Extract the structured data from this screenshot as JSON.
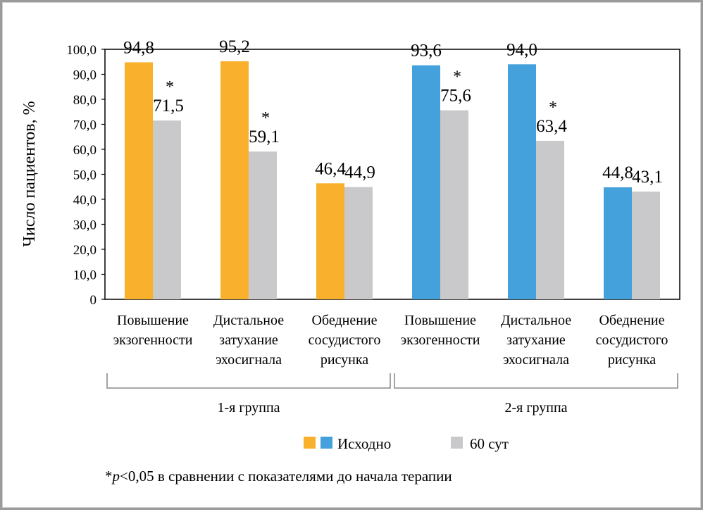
{
  "chart_data": {
    "type": "bar",
    "ylabel": "Число пациентов, %",
    "ylim": [
      0,
      100
    ],
    "yticks": [
      "0",
      "10,0",
      "20,0",
      "30,0",
      "40,0",
      "50,0",
      "60,0",
      "70,0",
      "80,0",
      "90,0",
      "100,0"
    ],
    "groups": [
      {
        "label": "1-я группа",
        "baseline_color": "#F9B02D",
        "categories": [
          {
            "label_lines": [
              "Повышение",
              "экзогенности"
            ],
            "baseline": 94.8,
            "day60": 71.5,
            "baseline_label": "94,8",
            "day60_label": "71,5",
            "significant": true
          },
          {
            "label_lines": [
              "Дистальное",
              "затухание",
              "эхосигнала"
            ],
            "baseline": 95.2,
            "day60": 59.1,
            "baseline_label": "95,2",
            "day60_label": "59,1",
            "significant": true
          },
          {
            "label_lines": [
              "Обеднение",
              "сосудистого",
              "рисунка"
            ],
            "baseline": 46.4,
            "day60": 44.9,
            "baseline_label": "46,4",
            "day60_label": "44,9",
            "significant": false
          }
        ]
      },
      {
        "label": "2-я группа",
        "baseline_color": "#45A1DB",
        "categories": [
          {
            "label_lines": [
              "Повышение",
              "экзогенности"
            ],
            "baseline": 93.6,
            "day60": 75.6,
            "baseline_label": "93,6",
            "day60_label": "75,6",
            "significant": true
          },
          {
            "label_lines": [
              "Дистальное",
              "затухание",
              "эхосигнала"
            ],
            "baseline": 94.0,
            "day60": 63.4,
            "baseline_label": "94,0",
            "day60_label": "63,4",
            "significant": true
          },
          {
            "label_lines": [
              "Обеднение",
              "сосудистого",
              "рисунка"
            ],
            "baseline": 44.8,
            "day60": 43.1,
            "baseline_label": "44,8",
            "day60_label": "43,1",
            "significant": false
          }
        ]
      }
    ],
    "day60_color": "#C9C9CB",
    "significance_marker": "*",
    "legend": {
      "baseline_label": "Исходно",
      "day60_label": "60 сут",
      "baseline_colors": [
        "#F9B02D",
        "#45A1DB"
      ]
    },
    "footnote": {
      "star": "*",
      "p": "p",
      "rest": "<0,05 в сравнении с показателями до начала терапии"
    }
  }
}
